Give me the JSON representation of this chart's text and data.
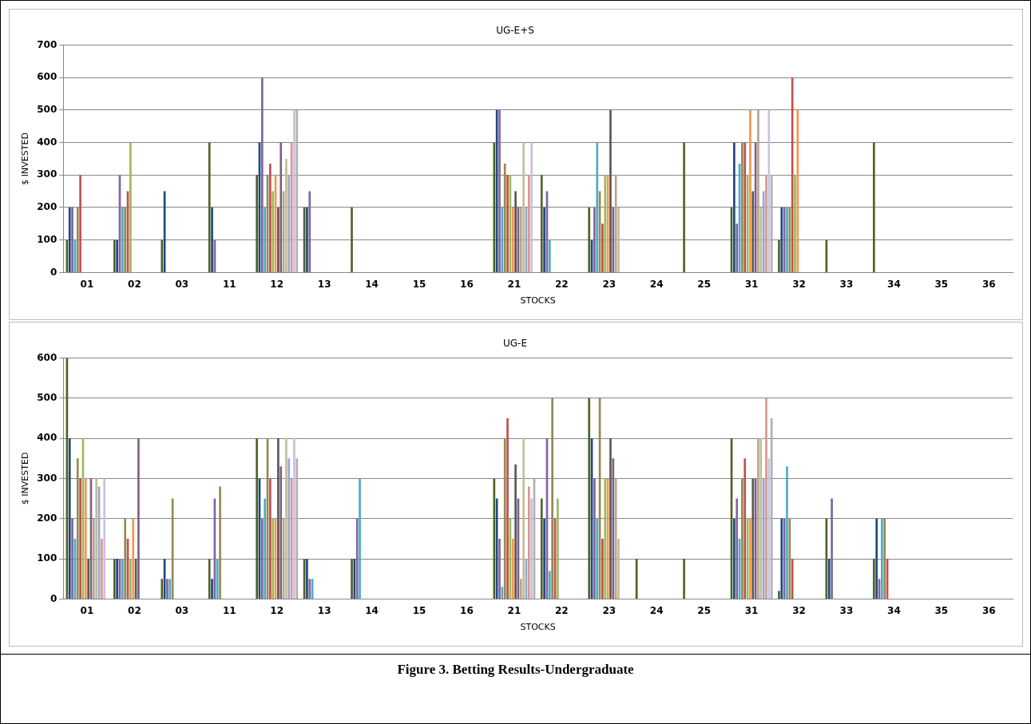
{
  "chart_data": [
    {
      "type": "bar",
      "title": "UG-E+S",
      "xlabel": "STOCKS",
      "ylabel": "$ INVESTED",
      "categories": [
        "01",
        "02",
        "03",
        "11",
        "12",
        "13",
        "14",
        "15",
        "16",
        "21",
        "22",
        "23",
        "24",
        "25",
        "31",
        "32",
        "33",
        "34",
        "35",
        "36"
      ],
      "ylim": [
        0,
        700
      ],
      "yticks": [
        0,
        100,
        200,
        300,
        400,
        500,
        600,
        700
      ],
      "grid": "y",
      "legend": false,
      "series": [
        {
          "color": "#4f6228",
          "values": [
            100,
            100,
            100,
            400,
            300,
            200,
            200,
            null,
            null,
            400,
            300,
            200,
            null,
            400,
            200,
            100,
            100,
            400,
            null,
            null
          ]
        },
        {
          "color": "#1f497d",
          "values": [
            200,
            100,
            250,
            200,
            400,
            200,
            null,
            null,
            null,
            500,
            200,
            100,
            null,
            null,
            400,
            200,
            null,
            null,
            null,
            null
          ]
        },
        {
          "color": "#8064a2",
          "values": [
            200,
            300,
            null,
            100,
            600,
            250,
            null,
            null,
            null,
            500,
            250,
            200,
            null,
            null,
            150,
            200,
            null,
            null,
            null,
            null
          ]
        },
        {
          "color": "#4bacc6",
          "values": [
            100,
            200,
            null,
            null,
            200,
            null,
            null,
            null,
            null,
            200,
            100,
            400,
            null,
            null,
            335,
            200,
            null,
            null,
            null,
            null
          ]
        },
        {
          "color": "#948a54",
          "values": [
            200,
            200,
            null,
            null,
            300,
            null,
            null,
            null,
            null,
            335,
            null,
            250,
            null,
            null,
            400,
            200,
            null,
            null,
            null,
            null
          ]
        },
        {
          "color": "#c0504d",
          "values": [
            300,
            250,
            null,
            null,
            335,
            null,
            null,
            null,
            null,
            300,
            null,
            150,
            null,
            null,
            400,
            600,
            null,
            null,
            null,
            null
          ]
        },
        {
          "color": "#9bbb59",
          "values": [
            null,
            400,
            null,
            null,
            250,
            null,
            null,
            null,
            null,
            300,
            null,
            300,
            null,
            null,
            300,
            300,
            null,
            null,
            null,
            null
          ]
        },
        {
          "color": "#f79646",
          "values": [
            null,
            null,
            null,
            null,
            300,
            null,
            null,
            null,
            null,
            200,
            null,
            300,
            null,
            null,
            500,
            500,
            null,
            null,
            null,
            null
          ]
        },
        {
          "color": "#595959",
          "values": [
            null,
            null,
            null,
            null,
            200,
            null,
            null,
            null,
            null,
            250,
            null,
            500,
            null,
            null,
            250,
            null,
            null,
            null,
            null,
            null
          ]
        },
        {
          "color": "#7f6084",
          "values": [
            null,
            null,
            null,
            null,
            400,
            null,
            null,
            null,
            null,
            200,
            null,
            200,
            null,
            null,
            400,
            null,
            null,
            null,
            null,
            null
          ]
        },
        {
          "color": "#b7a58c",
          "values": [
            null,
            null,
            null,
            null,
            250,
            null,
            null,
            null,
            null,
            200,
            null,
            300,
            null,
            null,
            500,
            null,
            null,
            null,
            null,
            null
          ]
        },
        {
          "color": "#c4bd97",
          "values": [
            null,
            null,
            null,
            null,
            350,
            null,
            null,
            null,
            null,
            400,
            null,
            200,
            null,
            null,
            200,
            null,
            null,
            null,
            null,
            null
          ]
        },
        {
          "color": "#93a9cf",
          "values": [
            null,
            null,
            null,
            null,
            300,
            null,
            null,
            null,
            null,
            200,
            null,
            null,
            null,
            null,
            250,
            null,
            null,
            null,
            null,
            null
          ]
        },
        {
          "color": "#d99694",
          "values": [
            null,
            null,
            null,
            null,
            400,
            null,
            null,
            null,
            null,
            300,
            null,
            null,
            null,
            null,
            300,
            null,
            null,
            null,
            null,
            null
          ]
        },
        {
          "color": "#ccc1da",
          "values": [
            null,
            null,
            null,
            null,
            500,
            null,
            null,
            null,
            null,
            400,
            null,
            null,
            null,
            null,
            500,
            null,
            null,
            null,
            null,
            null
          ]
        },
        {
          "color": "#b0b0b0",
          "values": [
            null,
            null,
            null,
            null,
            500,
            null,
            null,
            null,
            null,
            null,
            null,
            null,
            null,
            null,
            300,
            null,
            null,
            null,
            null,
            null
          ]
        }
      ]
    },
    {
      "type": "bar",
      "title": "UG-E",
      "xlabel": "STOCKS",
      "ylabel": "$ INVESTED",
      "categories": [
        "01",
        "02",
        "03",
        "11",
        "12",
        "13",
        "14",
        "15",
        "16",
        "21",
        "22",
        "23",
        "24",
        "25",
        "31",
        "32",
        "33",
        "34",
        "35",
        "36"
      ],
      "ylim": [
        0,
        600
      ],
      "yticks": [
        0,
        100,
        200,
        300,
        400,
        500,
        600
      ],
      "grid": "y",
      "legend": false,
      "annotations": [
        "Figure 3. Betting Results-Undergraduate"
      ],
      "series": [
        {
          "color": "#4f6228",
          "values": [
            600,
            100,
            50,
            100,
            400,
            100,
            100,
            null,
            null,
            300,
            250,
            500,
            100,
            100,
            400,
            20,
            200,
            100,
            null,
            null
          ]
        },
        {
          "color": "#1f497d",
          "values": [
            400,
            100,
            100,
            50,
            300,
            100,
            100,
            null,
            null,
            250,
            200,
            400,
            null,
            null,
            200,
            200,
            100,
            200,
            null,
            null
          ]
        },
        {
          "color": "#8064a2",
          "values": [
            200,
            100,
            50,
            250,
            200,
            50,
            200,
            null,
            null,
            150,
            400,
            300,
            null,
            null,
            250,
            200,
            250,
            50,
            null,
            null
          ]
        },
        {
          "color": "#4bacc6",
          "values": [
            150,
            100,
            50,
            100,
            250,
            50,
            300,
            null,
            null,
            30,
            70,
            200,
            null,
            null,
            150,
            330,
            null,
            200,
            null,
            null
          ]
        },
        {
          "color": "#948a54",
          "values": [
            350,
            200,
            250,
            280,
            400,
            null,
            null,
            null,
            null,
            400,
            500,
            500,
            null,
            null,
            300,
            200,
            null,
            200,
            null,
            null
          ]
        },
        {
          "color": "#c0504d",
          "values": [
            300,
            150,
            null,
            null,
            300,
            null,
            null,
            null,
            null,
            450,
            200,
            150,
            null,
            null,
            350,
            100,
            null,
            100,
            null,
            null
          ]
        },
        {
          "color": "#9bbb59",
          "values": [
            400,
            100,
            null,
            null,
            200,
            null,
            null,
            null,
            null,
            200,
            250,
            300,
            null,
            null,
            200,
            null,
            null,
            null,
            null,
            null
          ]
        },
        {
          "color": "#f79646",
          "values": [
            300,
            200,
            null,
            null,
            200,
            null,
            null,
            null,
            null,
            150,
            null,
            300,
            null,
            null,
            200,
            null,
            null,
            null,
            null,
            null
          ]
        },
        {
          "color": "#595959",
          "values": [
            100,
            100,
            null,
            null,
            400,
            null,
            null,
            null,
            null,
            335,
            null,
            400,
            null,
            null,
            300,
            null,
            null,
            null,
            null,
            null
          ]
        },
        {
          "color": "#7f6084",
          "values": [
            300,
            400,
            null,
            null,
            330,
            null,
            null,
            null,
            null,
            250,
            null,
            350,
            null,
            null,
            300,
            null,
            null,
            null,
            null,
            null
          ]
        },
        {
          "color": "#b7a58c",
          "values": [
            200,
            null,
            null,
            null,
            200,
            null,
            null,
            null,
            null,
            50,
            null,
            300,
            null,
            null,
            400,
            null,
            null,
            null,
            null,
            null
          ]
        },
        {
          "color": "#c4bd97",
          "values": [
            300,
            null,
            null,
            null,
            400,
            null,
            null,
            null,
            null,
            400,
            null,
            150,
            null,
            null,
            400,
            null,
            null,
            null,
            null,
            null
          ]
        },
        {
          "color": "#93a9cf",
          "values": [
            280,
            null,
            null,
            null,
            350,
            null,
            null,
            null,
            null,
            100,
            null,
            null,
            null,
            null,
            300,
            null,
            null,
            null,
            null,
            null
          ]
        },
        {
          "color": "#d99694",
          "values": [
            150,
            null,
            null,
            null,
            300,
            null,
            null,
            null,
            null,
            280,
            null,
            null,
            null,
            null,
            500,
            null,
            null,
            null,
            null,
            null
          ]
        },
        {
          "color": "#ccc1da",
          "values": [
            300,
            null,
            null,
            null,
            400,
            null,
            null,
            null,
            null,
            250,
            null,
            null,
            null,
            null,
            350,
            null,
            null,
            null,
            null,
            null
          ]
        },
        {
          "color": "#b0b0b0",
          "values": [
            null,
            null,
            null,
            null,
            350,
            null,
            null,
            null,
            null,
            300,
            null,
            null,
            null,
            null,
            450,
            null,
            null,
            null,
            null,
            null
          ]
        }
      ]
    }
  ]
}
